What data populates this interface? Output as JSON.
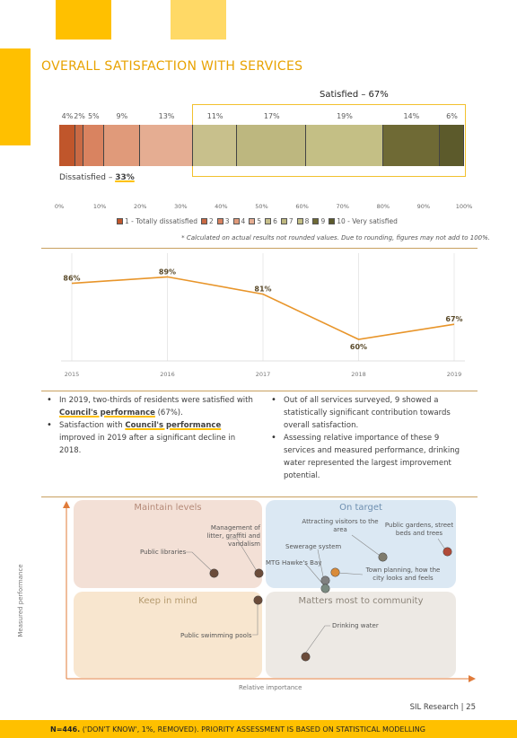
{
  "page": {
    "title": "OVERALL SATISFACTION WITH SERVICES",
    "page_number": "SIL Research | 25",
    "footer": {
      "n": "N=446.",
      "rest": "('DON'T KNOW', 1%, REMOVED). PRIORITY ASSESSMENT IS BASED ON STATISTICAL MODELLING"
    }
  },
  "satisfaction_bar": {
    "satisfied_label": "Satisfied – 67%",
    "dissatisfied_label": "Dissatisfied – ",
    "dissatisfied_value": "33%",
    "footnote": "* Calculated on actual results not rounded values. Due to rounding, figures may not add to 100%."
  },
  "bullets": {
    "left": [
      {
        "pre": "In 2019, two-thirds of residents were satisfied with ",
        "bold": "Council's performance",
        "post": " (67%)."
      },
      {
        "pre": "Satisfaction with ",
        "bold": "Council's performance",
        "post": " improved in 2019 after a significant decline in 2018."
      }
    ],
    "right": [
      {
        "text": "Out of all services surveyed, 9 showed a statistically significant contribution towards overall satisfaction."
      },
      {
        "text": "Assessing relative importance of these 9 services and measured performance, drinking water represented the largest improvement potential."
      }
    ]
  },
  "chart_data": [
    {
      "type": "bar",
      "subtype": "stacked-horizontal",
      "categories": [
        "1 - Totally dissatisfied",
        "2",
        "3",
        "4",
        "5",
        "6",
        "7",
        "8",
        "9",
        "10 - Very satisfied"
      ],
      "values": [
        4,
        2,
        5,
        9,
        13,
        11,
        17,
        19,
        14,
        6
      ],
      "value_labels": [
        "4%",
        "2%",
        "5%",
        "9%",
        "13%",
        "11%",
        "17%",
        "19%",
        "14%",
        "6%"
      ],
      "colors": [
        "#c0562b",
        "#c96a44",
        "#d98360",
        "#e09a7a",
        "#e5ad92",
        "#c8c08c",
        "#bdb77f",
        "#c4bf85",
        "#6f6a35",
        "#5c5a2b"
      ],
      "xlim": [
        0,
        100
      ],
      "xticks": [
        "0%",
        "10%",
        "20%",
        "30%",
        "40%",
        "50%",
        "60%",
        "70%",
        "80%",
        "90%",
        "100%"
      ],
      "legend_position": "bottom"
    },
    {
      "type": "line",
      "x": [
        "2015",
        "2016",
        "2017",
        "2018",
        "2019"
      ],
      "series": [
        {
          "values": [
            86,
            89,
            81,
            60,
            67
          ],
          "labels": [
            "86%",
            "89%",
            "81%",
            "60%",
            "67%"
          ],
          "color": "#e8952a"
        }
      ],
      "grid": true
    },
    {
      "type": "scatter",
      "xlabel": "Relative importance",
      "ylabel": "Measured performance",
      "quadrants": [
        {
          "name": "Maintain levels",
          "color": "#f3e0d6"
        },
        {
          "name": "On target",
          "color": "#dbe8f3"
        },
        {
          "name": "Keep in mind",
          "color": "#f8e6cf"
        },
        {
          "name": "Matters most to community",
          "color": "#ede9e4"
        }
      ],
      "points": [
        {
          "label": "Management of litter, graffiti and vandalism",
          "color": "#6b4c3a"
        },
        {
          "label": "Public libraries",
          "color": "#6b4c3a"
        },
        {
          "label": "Attracting visitors to the area",
          "color": "#7f7b6c"
        },
        {
          "label": "Public gardens, street beds and trees",
          "color": "#b04a38"
        },
        {
          "label": "Sewerage system",
          "color": "#808080"
        },
        {
          "label": "MTG Hawke's Bay",
          "color": "#7a8a80"
        },
        {
          "label": "Town planning, how the city looks and feels",
          "color": "#d98b3a"
        },
        {
          "label": "Public swimming pools",
          "color": "#6b4c3a"
        },
        {
          "label": "Drinking water",
          "color": "#6b4c3a"
        }
      ]
    }
  ]
}
